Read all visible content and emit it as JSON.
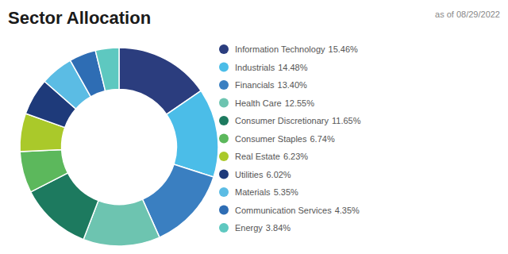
{
  "chart_data": {
    "type": "donut",
    "title": "Sector Allocation",
    "subtitle": "as of 08/29/2022",
    "categories": [
      "Information Technology",
      "Industrials",
      "Financials",
      "Health Care",
      "Consumer Discretionary",
      "Consumer Staples",
      "Real Estate",
      "Utilities",
      "Materials",
      "Communication Services",
      "Energy"
    ],
    "values": [
      15.46,
      14.48,
      13.4,
      12.55,
      11.65,
      6.74,
      6.23,
      6.02,
      5.35,
      4.35,
      3.84
    ],
    "value_labels": [
      "15.46%",
      "14.48%",
      "13.40%",
      "12.55%",
      "11.65%",
      "6.74%",
      "6.23%",
      "6.02%",
      "5.35%",
      "4.35%",
      "3.84%"
    ],
    "colors": [
      "#2b3d7e",
      "#4bbde8",
      "#3a7fc1",
      "#6dc4b0",
      "#1d7a5f",
      "#5cb85c",
      "#aac92a",
      "#1e3a7a",
      "#5bbce4",
      "#2e6db4",
      "#5ec8c0"
    ],
    "legend": "right"
  }
}
